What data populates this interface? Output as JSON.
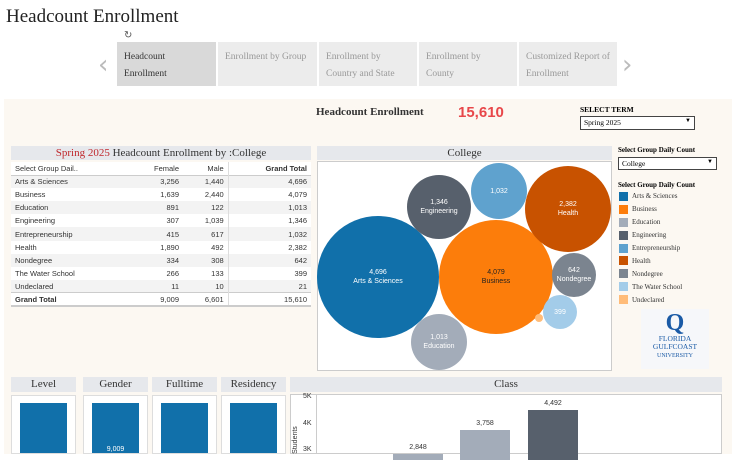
{
  "page_title": "Headcount Enrollment",
  "tabs": [
    {
      "label": "Headcount Enrollment"
    },
    {
      "label": "Enrollment by Group"
    },
    {
      "label": "Enrollment by Country and State"
    },
    {
      "label": "Enrollment by County"
    },
    {
      "label": "Customized Report of Enrollment"
    }
  ],
  "summary": {
    "label": "Headcount Enrollment",
    "value": "15,610"
  },
  "term": {
    "label": "SELECT TERM",
    "value": "Spring 2025"
  },
  "table": {
    "title_term": "Spring 2025",
    "title_rest": "Headcount Enrollment by :College",
    "columns": [
      "Select Group Dail..",
      "Female",
      "Male",
      "Grand Total"
    ],
    "rows": [
      [
        "Arts & Sciences",
        "3,256",
        "1,440",
        "4,696"
      ],
      [
        "Business",
        "1,639",
        "2,440",
        "4,079"
      ],
      [
        "Education",
        "891",
        "122",
        "1,013"
      ],
      [
        "Engineering",
        "307",
        "1,039",
        "1,346"
      ],
      [
        "Entrepreneurship",
        "415",
        "617",
        "1,032"
      ],
      [
        "Health",
        "1,890",
        "492",
        "2,382"
      ],
      [
        "Nondegree",
        "334",
        "308",
        "642"
      ],
      [
        "The Water School",
        "266",
        "133",
        "399"
      ],
      [
        "Undeclared",
        "11",
        "10",
        "21"
      ],
      [
        "Grand Total",
        "9,009",
        "6,601",
        "15,610"
      ]
    ]
  },
  "college_chart": {
    "title": "College",
    "bubbles": [
      {
        "label": "Arts & Sciences",
        "value": "4,696",
        "color": "#1170aa"
      },
      {
        "label": "Business",
        "value": "4,079",
        "color": "#fc7d0b"
      },
      {
        "label": "Health",
        "value": "2,382",
        "color": "#c85200"
      },
      {
        "label": "Engineering",
        "value": "1,346",
        "color": "#57606c"
      },
      {
        "label": "",
        "value": "1,032",
        "color": "#5fa2ce"
      },
      {
        "label": "Nondegree",
        "value": "642",
        "color": "#7b848f"
      },
      {
        "label": "",
        "value": "399",
        "color": "#a3cce9"
      },
      {
        "label": "Education",
        "value": "1,013",
        "color": "#a3acb9"
      },
      {
        "label": "",
        "value": "",
        "color": "#ffbc79"
      }
    ]
  },
  "group_select": {
    "label": "Select Group Daily Count",
    "value": "College"
  },
  "legend": {
    "title": "Select Group Daily Count",
    "items": [
      {
        "label": "Arts & Sciences",
        "color": "#1170aa"
      },
      {
        "label": "Business",
        "color": "#fc7d0b"
      },
      {
        "label": "Education",
        "color": "#a3acb9"
      },
      {
        "label": "Engineering",
        "color": "#57606c"
      },
      {
        "label": "Entrepreneurship",
        "color": "#5fa2ce"
      },
      {
        "label": "Health",
        "color": "#c85200"
      },
      {
        "label": "Nondegree",
        "color": "#7b848f"
      },
      {
        "label": "The Water School",
        "color": "#a3cce9"
      },
      {
        "label": "Undeclared",
        "color": "#ffbc79"
      }
    ]
  },
  "logo": {
    "line1": "FLORIDA",
    "line2": "GULFCOAST",
    "line3": "UNIVERSITY"
  },
  "small_panels": [
    {
      "title": "Level",
      "value": ""
    },
    {
      "title": "Gender",
      "value": "9,009"
    },
    {
      "title": "Fulltime",
      "value": ""
    },
    {
      "title": "Residency",
      "value": ""
    }
  ],
  "chart_data": {
    "type": "bar",
    "title": "Class",
    "ylabel": "Students",
    "yticks": [
      "5K",
      "4K",
      "3K"
    ],
    "ylim": [
      0,
      5000
    ],
    "values": [
      2848,
      3758,
      4492
    ],
    "labels": [
      "2,848",
      "3,758",
      "4,492"
    ],
    "colors": [
      "#a3acb9",
      "#a3acb9",
      "#57606c"
    ]
  }
}
